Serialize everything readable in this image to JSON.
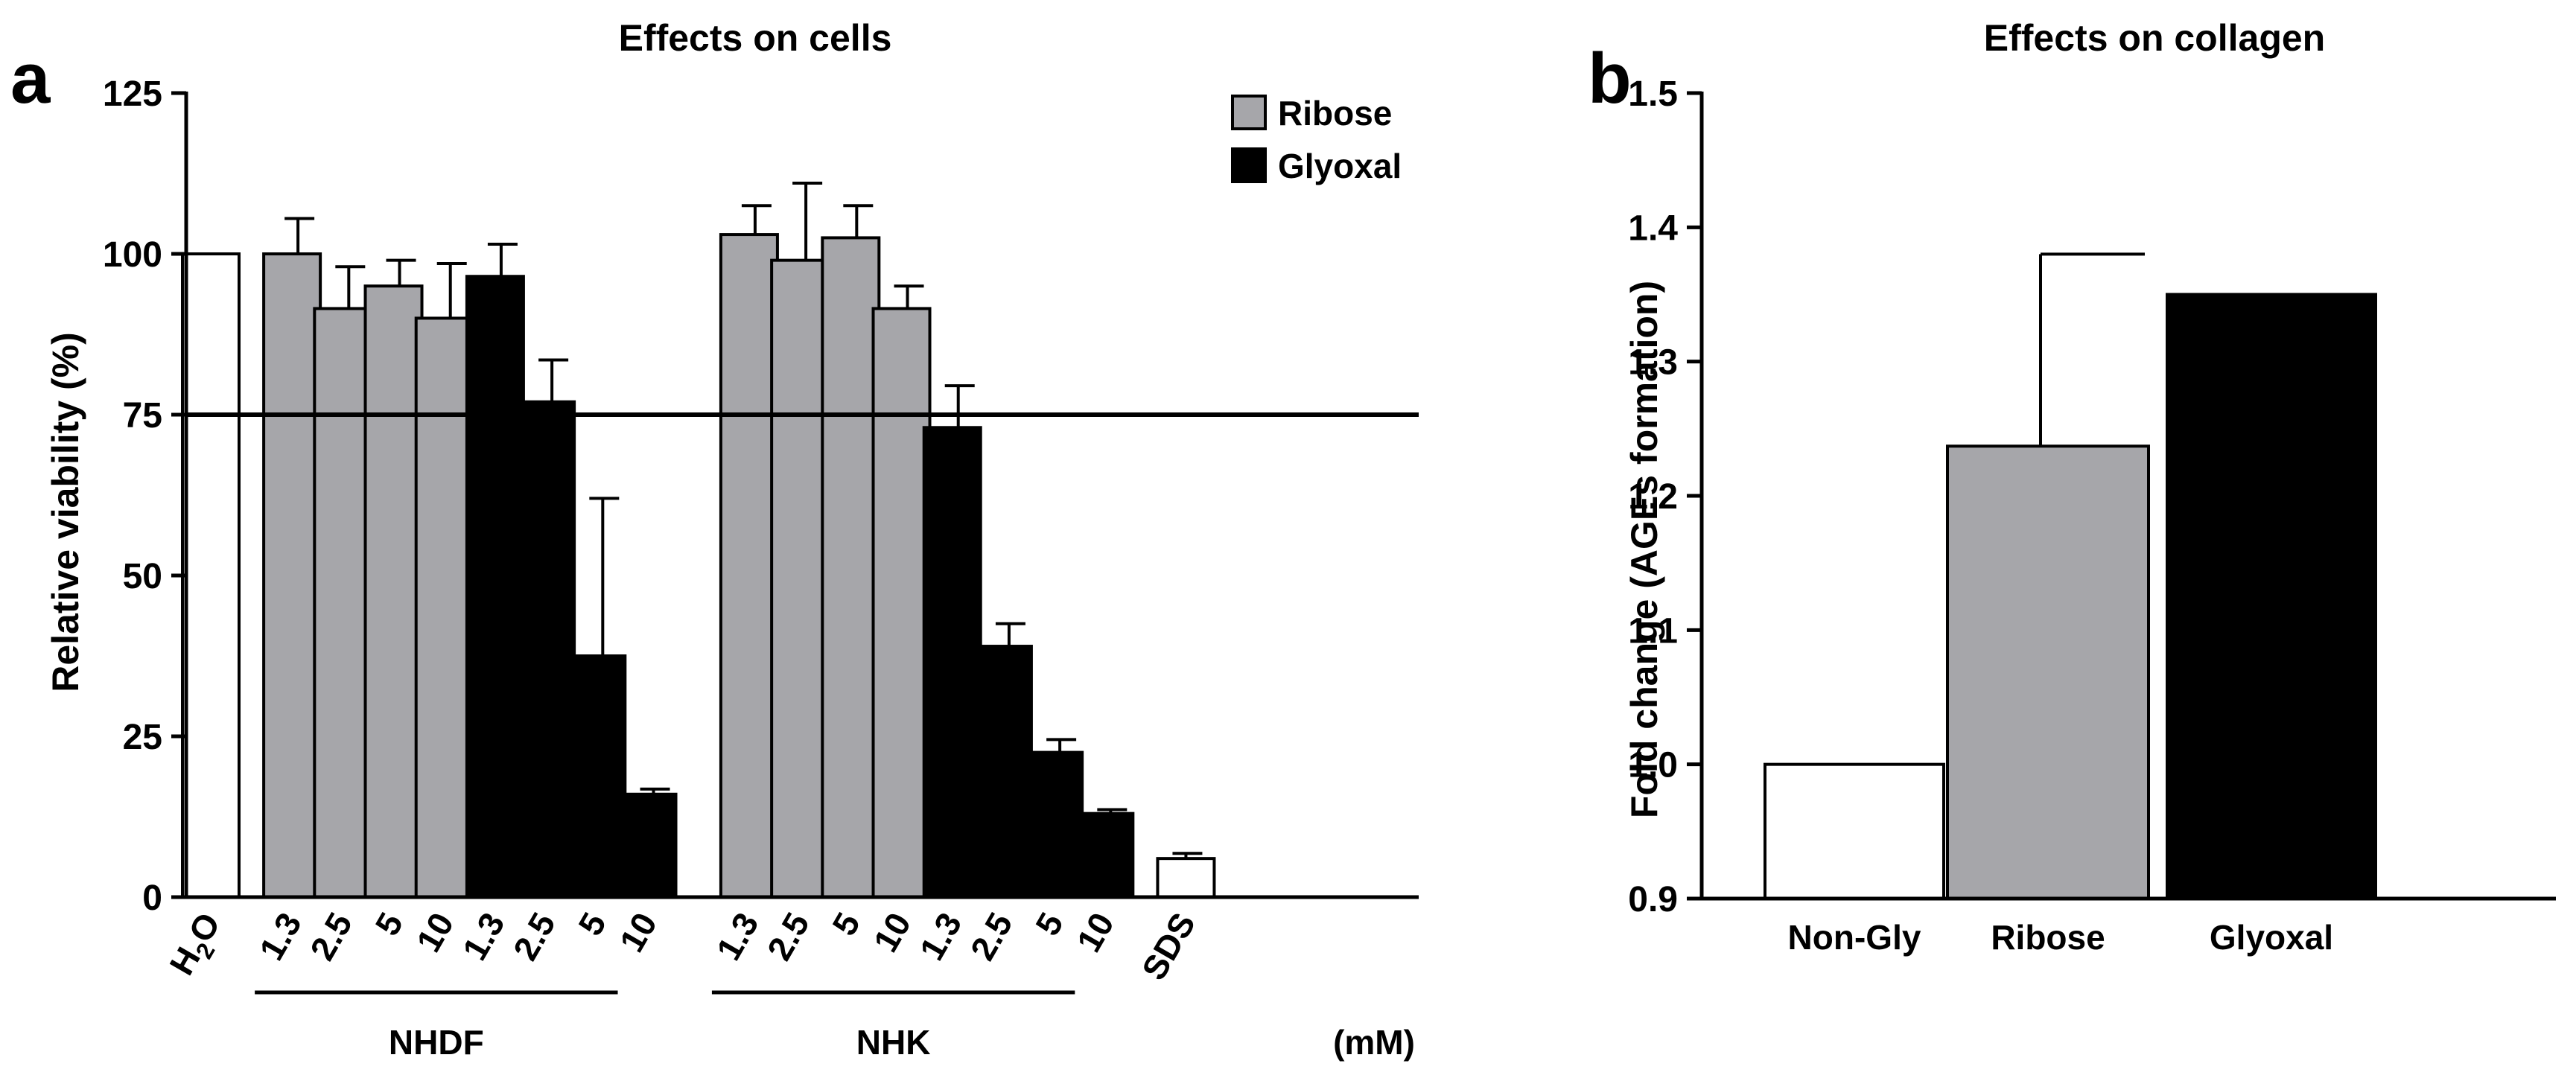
{
  "chart_data": [
    {
      "panel": "a",
      "type": "bar",
      "title": "Effects on cells",
      "ylabel": "Relative viability (%)",
      "ylim": [
        0,
        125
      ],
      "yticks": [
        0,
        25,
        50,
        75,
        100,
        125
      ],
      "reference_line": 75,
      "legend": {
        "placement": "top-right",
        "entries": [
          {
            "label": "Ribose",
            "color": "#a6a6aa"
          },
          {
            "label": "Glyoxal",
            "color": "#000000"
          }
        ]
      },
      "unit_label": "(mM)",
      "groups": [
        {
          "label": "NHDF",
          "first": 1,
          "last": 8
        },
        {
          "label": "NHK",
          "first": 9,
          "last": 16
        }
      ],
      "bars": [
        {
          "label": "H₂O",
          "value": 100,
          "error": 0,
          "fill": "#ffffff",
          "slot": 0,
          "kind": "control"
        },
        {
          "label": "1.3",
          "value": 100,
          "error": 5.5,
          "fill": "#a6a6aa",
          "slot": 1.6,
          "kind": "Ribose"
        },
        {
          "label": "2.5",
          "value": 91.5,
          "error": 6.5,
          "fill": "#a6a6aa",
          "slot": 2.6,
          "kind": "Ribose"
        },
        {
          "label": "5",
          "value": 95,
          "error": 4,
          "fill": "#a6a6aa",
          "slot": 3.6,
          "kind": "Ribose"
        },
        {
          "label": "10",
          "value": 90,
          "error": 8.5,
          "fill": "#a6a6aa",
          "slot": 4.6,
          "kind": "Ribose"
        },
        {
          "label": "1.3",
          "value": 96.5,
          "error": 5,
          "fill": "#000000",
          "slot": 5.6,
          "kind": "Glyoxal"
        },
        {
          "label": "2.5",
          "value": 77,
          "error": 6.5,
          "fill": "#000000",
          "slot": 6.6,
          "kind": "Glyoxal"
        },
        {
          "label": "5",
          "value": 37.5,
          "error": 24.5,
          "fill": "#000000",
          "slot": 7.6,
          "kind": "Glyoxal"
        },
        {
          "label": "10",
          "value": 16,
          "error": 0.8,
          "fill": "#000000",
          "slot": 8.6,
          "kind": "Glyoxal"
        },
        {
          "label": "1.3",
          "value": 103,
          "error": 4.5,
          "fill": "#a6a6aa",
          "slot": 10.6,
          "kind": "Ribose"
        },
        {
          "label": "2.5",
          "value": 99,
          "error": 12,
          "fill": "#a6a6aa",
          "slot": 11.6,
          "kind": "Ribose"
        },
        {
          "label": "5",
          "value": 102.5,
          "error": 5,
          "fill": "#a6a6aa",
          "slot": 12.6,
          "kind": "Ribose"
        },
        {
          "label": "10",
          "value": 91.5,
          "error": 3.5,
          "fill": "#a6a6aa",
          "slot": 13.6,
          "kind": "Ribose"
        },
        {
          "label": "1.3",
          "value": 73,
          "error": 6.5,
          "fill": "#000000",
          "slot": 14.6,
          "kind": "Glyoxal"
        },
        {
          "label": "2.5",
          "value": 39,
          "error": 3.5,
          "fill": "#000000",
          "slot": 15.6,
          "kind": "Glyoxal"
        },
        {
          "label": "5",
          "value": 22.5,
          "error": 2,
          "fill": "#000000",
          "slot": 16.6,
          "kind": "Glyoxal"
        },
        {
          "label": "10",
          "value": 13,
          "error": 0.6,
          "fill": "#000000",
          "slot": 17.6,
          "kind": "Glyoxal"
        },
        {
          "label": "SDS",
          "value": 6,
          "error": 0.8,
          "fill": "#ffffff",
          "slot": 19.2,
          "kind": "control"
        }
      ]
    },
    {
      "panel": "b",
      "type": "bar",
      "title": "Effects on collagen",
      "ylabel": "Fold change (AGEs formation)",
      "ylim": [
        0.9,
        1.5
      ],
      "yticks": [
        "0.9",
        "1.0",
        "1.1",
        "1.2",
        "1.3",
        "1.4",
        "1.5"
      ],
      "categories": [
        "Non-Gly",
        "Ribose",
        "Glyoxal"
      ],
      "values": [
        1.0,
        1.237,
        1.35
      ],
      "errors": [
        0,
        0.143,
        0
      ],
      "colors": [
        "#ffffff",
        "#a6a6aa",
        "#000000"
      ]
    }
  ]
}
